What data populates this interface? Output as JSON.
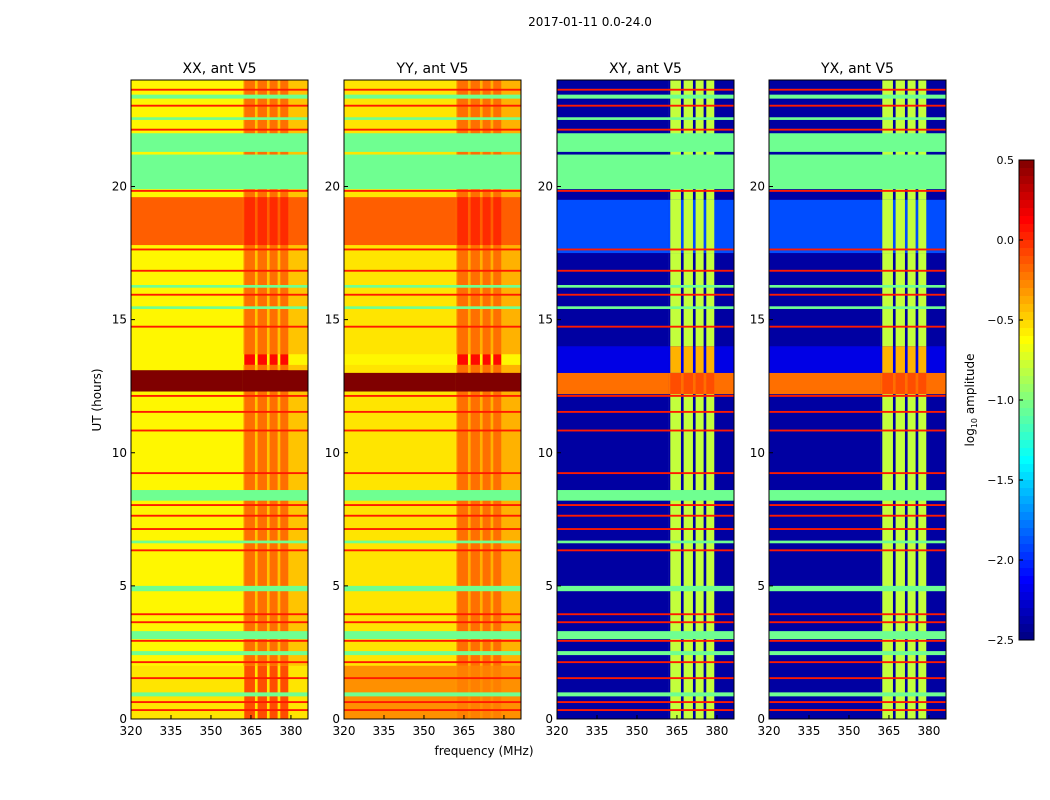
{
  "chart_data": {
    "type": "heatmap",
    "suptitle": "2017-01-11 0.0-24.0",
    "xlabel": "frequency (MHz)",
    "ylabel": "UT (hours)",
    "xlim": [
      320,
      386.4
    ],
    "ylim": [
      0,
      24
    ],
    "xticks": [
      "320",
      "335",
      "350",
      "365",
      "380"
    ],
    "yticks": [
      "0",
      "5",
      "10",
      "15",
      "20"
    ],
    "colorbar": {
      "label_main": "log",
      "label_sub": "10",
      "label_rest": " amplitude",
      "range": [
        -2.5,
        0.5
      ],
      "ticks": [
        "0.5",
        "0.0",
        "−0.5",
        "−1.0",
        "−1.5",
        "−2.0",
        "−2.5"
      ]
    },
    "rfi_columns_mhz": [
      [
        362.5,
        366.5
      ],
      [
        367.5,
        371
      ],
      [
        372,
        375
      ],
      [
        376,
        379
      ]
    ],
    "panels": [
      {
        "title": "XX, ant V5",
        "kind": "auto",
        "low": -0.6,
        "high": -0.2,
        "bands": [
          [
            12.3,
            13.1,
            0.5,
            0.5
          ],
          [
            17.8,
            19.6,
            -0.15,
            0.0
          ],
          [
            0,
            2,
            -0.55,
            -0.1
          ],
          [
            13.3,
            13.7,
            -0.6,
            0.1
          ]
        ]
      },
      {
        "title": "YY, ant V5",
        "kind": "auto",
        "low": -0.55,
        "high": -0.2,
        "bands": [
          [
            12.3,
            13.0,
            0.5,
            0.5
          ],
          [
            17.8,
            19.6,
            -0.15,
            0.0
          ],
          [
            0,
            2,
            -0.3,
            -0.25
          ],
          [
            13.3,
            13.7,
            -0.6,
            0.1
          ]
        ]
      },
      {
        "title": "XY, ant V5",
        "kind": "cross",
        "low": -2.4,
        "high": -0.8,
        "bands": [
          [
            12.2,
            13.0,
            -0.2,
            -0.1
          ],
          [
            17.5,
            19.5,
            -1.9,
            -0.8
          ],
          [
            13.0,
            14.0,
            -2.2,
            -0.4
          ]
        ]
      },
      {
        "title": "YX, ant V5",
        "kind": "cross",
        "low": -2.4,
        "high": -0.8,
        "bands": [
          [
            12.2,
            13.0,
            -0.2,
            -0.1
          ],
          [
            17.5,
            19.5,
            -1.9,
            -0.8
          ],
          [
            13.0,
            14.0,
            -2.2,
            -0.4
          ]
        ]
      }
    ],
    "flagged_bands_hours": [
      [
        19.9,
        21.2
      ],
      [
        21.3,
        22.0
      ],
      [
        0.85,
        1.0
      ],
      [
        2.4,
        2.55
      ],
      [
        3.0,
        3.3
      ],
      [
        4.8,
        5.0
      ],
      [
        8.2,
        8.6
      ],
      [
        6.6,
        6.7
      ],
      [
        15.4,
        15.5
      ],
      [
        16.2,
        16.3
      ],
      [
        23.3,
        23.45
      ],
      [
        22.5,
        22.6
      ]
    ],
    "rfi_lines_hours": [
      0.3,
      0.6,
      1.5,
      2.1,
      2.9,
      3.6,
      3.9,
      6.3,
      7.1,
      7.6,
      8.0,
      9.2,
      10.8,
      11.5,
      12.1,
      14.7,
      15.9,
      16.8,
      17.6,
      19.8,
      22.1,
      23.0,
      23.6
    ]
  }
}
